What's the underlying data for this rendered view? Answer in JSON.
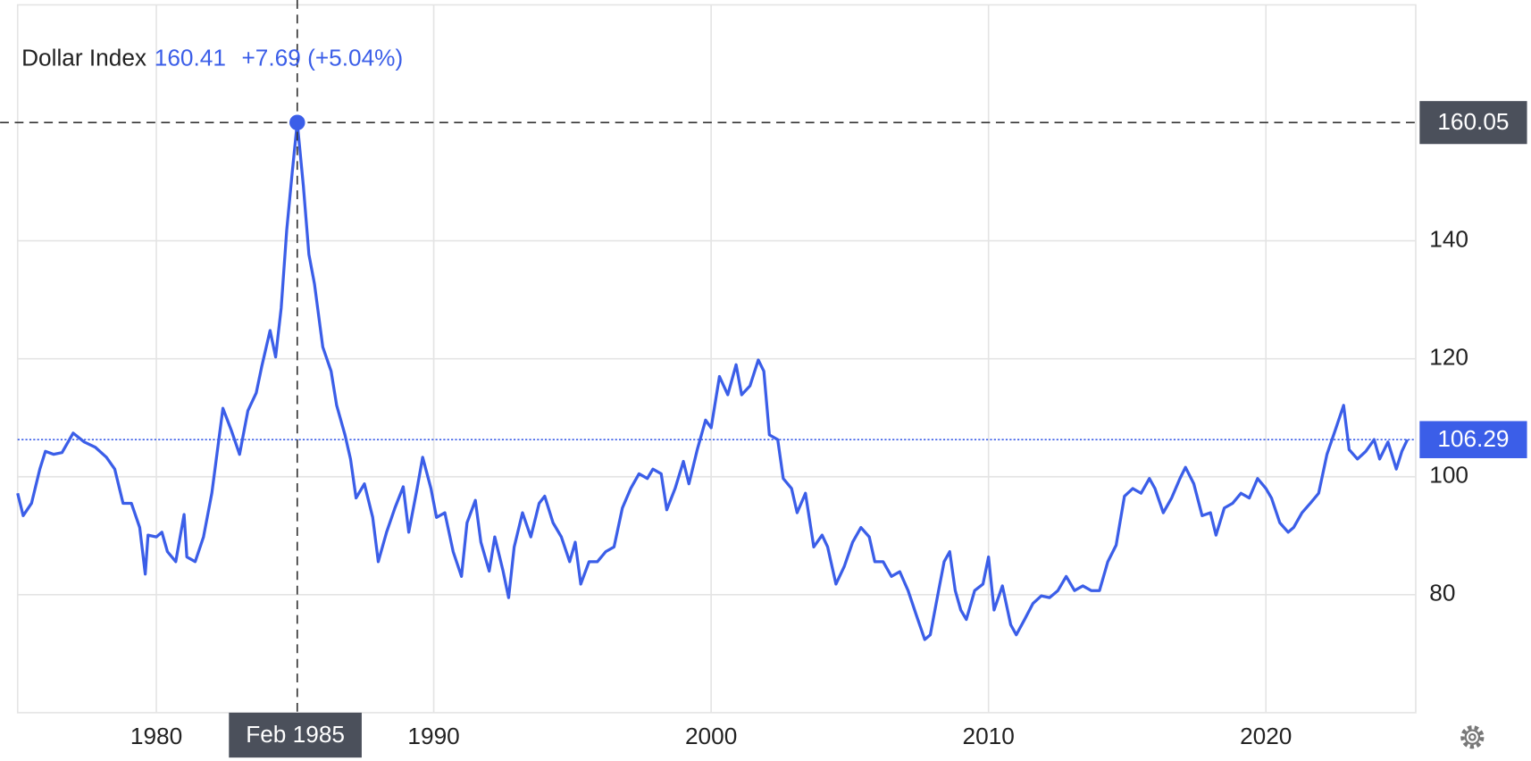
{
  "chart_data": {
    "type": "line",
    "title": "Dollar Index",
    "readout": {
      "value": 160.41,
      "change_label": "+7.69 (+5.04%)"
    },
    "crosshair": {
      "x": 1985.08,
      "y": 160.05,
      "x_label": "Feb 1985"
    },
    "xlim": [
      1975,
      2025.4
    ],
    "xticks": [
      1980,
      1990,
      2000,
      2010,
      2020
    ],
    "ylim": [
      60,
      180
    ],
    "yticks": [
      80,
      100,
      120,
      140
    ],
    "grid": true,
    "x": [
      1975.0,
      1975.2,
      1975.5,
      1975.8,
      1976.0,
      1976.3,
      1976.6,
      1977.0,
      1977.4,
      1977.8,
      1978.2,
      1978.5,
      1978.8,
      1979.1,
      1979.4,
      1979.6,
      1979.7,
      1980.0,
      1980.2,
      1980.4,
      1980.7,
      1981.0,
      1981.1,
      1981.4,
      1981.7,
      1982.0,
      1982.4,
      1982.7,
      1983.0,
      1983.3,
      1983.6,
      1983.8,
      1984.1,
      1984.3,
      1984.5,
      1984.7,
      1984.9,
      1985.08,
      1985.3,
      1985.5,
      1985.7,
      1986.0,
      1986.3,
      1986.5,
      1986.8,
      1987.0,
      1987.2,
      1987.5,
      1987.8,
      1988.0,
      1988.3,
      1988.6,
      1988.9,
      1989.1,
      1989.4,
      1989.6,
      1989.9,
      1990.1,
      1990.4,
      1990.7,
      1991.0,
      1991.2,
      1991.5,
      1991.7,
      1992.0,
      1992.2,
      1992.5,
      1992.7,
      1992.9,
      1993.2,
      1993.5,
      1993.8,
      1994.0,
      1994.3,
      1994.6,
      1994.9,
      1995.1,
      1995.3,
      1995.6,
      1995.9,
      1996.2,
      1996.5,
      1996.8,
      1997.1,
      1997.4,
      1997.7,
      1997.9,
      1998.2,
      1998.4,
      1998.7,
      1999.0,
      1999.2,
      1999.5,
      1999.8,
      2000.0,
      2000.3,
      2000.6,
      2000.9,
      2001.1,
      2001.4,
      2001.7,
      2001.9,
      2002.1,
      2002.4,
      2002.6,
      2002.9,
      2003.1,
      2003.4,
      2003.7,
      2004.0,
      2004.2,
      2004.5,
      2004.8,
      2005.1,
      2005.4,
      2005.7,
      2005.9,
      2006.2,
      2006.5,
      2006.8,
      2007.1,
      2007.4,
      2007.7,
      2007.9,
      2008.2,
      2008.4,
      2008.6,
      2008.8,
      2009.0,
      2009.2,
      2009.5,
      2009.8,
      2010.0,
      2010.2,
      2010.5,
      2010.8,
      2011.0,
      2011.3,
      2011.6,
      2011.9,
      2012.2,
      2012.5,
      2012.8,
      2013.1,
      2013.4,
      2013.7,
      2014.0,
      2014.3,
      2014.6,
      2014.9,
      2015.2,
      2015.5,
      2015.8,
      2016.0,
      2016.3,
      2016.6,
      2016.9,
      2017.1,
      2017.4,
      2017.7,
      2018.0,
      2018.2,
      2018.5,
      2018.8,
      2019.1,
      2019.4,
      2019.7,
      2020.0,
      2020.2,
      2020.5,
      2020.8,
      2021.0,
      2021.3,
      2021.6,
      2021.9,
      2022.2,
      2022.5,
      2022.8,
      2023.0,
      2023.3,
      2023.6,
      2023.9,
      2024.1,
      2024.4,
      2024.7,
      2024.9,
      2025.1
    ],
    "series": [
      {
        "name": "Dollar Index",
        "color": "#3b5ee8",
        "values": [
          97.2,
          93.4,
          95.5,
          101.3,
          104.3,
          103.8,
          104.1,
          107.4,
          105.9,
          105,
          103.3,
          101.3,
          95.5,
          95.5,
          91.4,
          83.5,
          90.1,
          89.8,
          90.6,
          87.3,
          85.6,
          93.6,
          86.4,
          85.6,
          89.8,
          97.2,
          111.6,
          107.9,
          103.8,
          111.2,
          114.2,
          118.7,
          124.8,
          120.3,
          128.6,
          141.8,
          151.7,
          160.05,
          149.3,
          137.7,
          132.7,
          122,
          117.9,
          112.1,
          107.1,
          103,
          96.4,
          98.8,
          93.1,
          85.6,
          90.6,
          94.7,
          98.3,
          90.6,
          98,
          103.3,
          98,
          93.1,
          93.9,
          87.3,
          83.1,
          92.2,
          96,
          88.9,
          84,
          89.8,
          84,
          79.5,
          88.1,
          93.9,
          89.8,
          95.5,
          96.7,
          92.2,
          89.8,
          85.6,
          88.9,
          81.8,
          85.6,
          85.6,
          87.3,
          88.1,
          94.7,
          98,
          100.5,
          99.7,
          101.3,
          100.5,
          94.4,
          98,
          102.6,
          98.8,
          104.6,
          109.6,
          108.3,
          117,
          113.9,
          119,
          113.9,
          115.4,
          119.8,
          117.9,
          107.1,
          106.3,
          99.7,
          98,
          93.9,
          97.2,
          88.1,
          90.1,
          88.1,
          81.8,
          84.8,
          88.9,
          91.4,
          89.8,
          85.6,
          85.6,
          83.1,
          83.9,
          80.7,
          76.5,
          72.4,
          73.2,
          80.7,
          85.6,
          87.3,
          80.7,
          77.4,
          75.8,
          80.7,
          81.8,
          86.4,
          77.4,
          81.5,
          74.9,
          73.2,
          75.8,
          78.5,
          79.8,
          79.5,
          80.7,
          83.1,
          80.7,
          81.5,
          80.7,
          80.7,
          85.6,
          88.4,
          96.7,
          98,
          97.2,
          99.7,
          98,
          93.9,
          96.4,
          99.7,
          101.6,
          98.8,
          93.4,
          93.9,
          90.1,
          94.7,
          95.5,
          97.2,
          96.4,
          99.7,
          98,
          96.4,
          92.2,
          90.6,
          91.4,
          93.9,
          95.5,
          97.2,
          103.8,
          107.9,
          112.1,
          104.6,
          103,
          104.3,
          106.3,
          103,
          105.9,
          101.3,
          104.3,
          106.29
        ]
      }
    ]
  }
}
